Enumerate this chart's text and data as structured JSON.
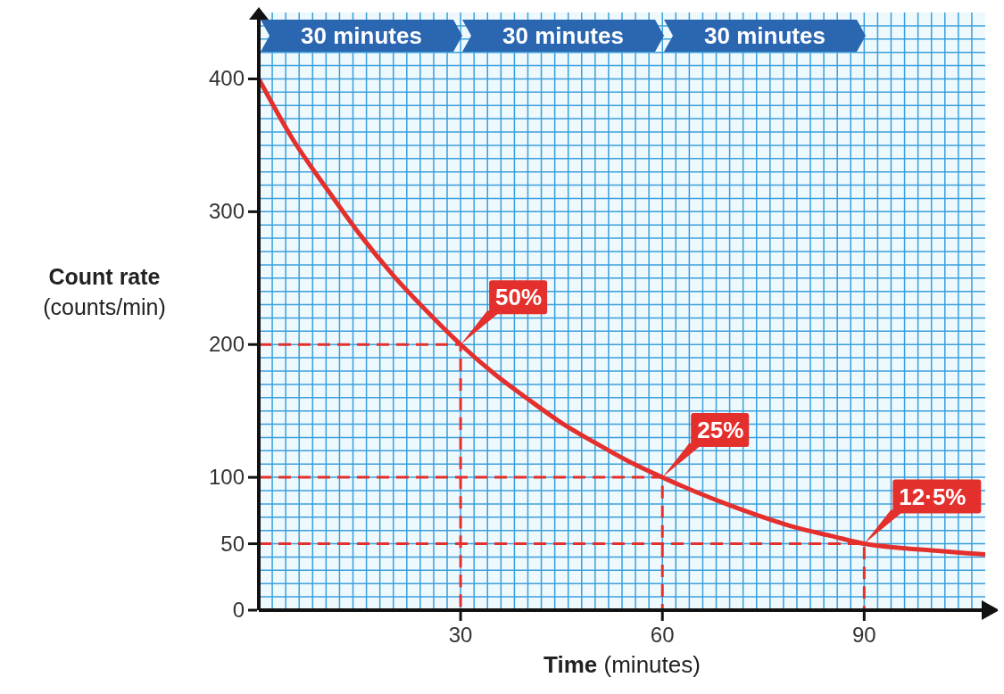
{
  "chart_data": {
    "type": "line",
    "xlabel": "Time (minutes)",
    "ylabel": "Count rate (counts/min)",
    "xlim": [
      0,
      108
    ],
    "ylim": [
      0,
      450
    ],
    "xticks": [
      {
        "value": 0,
        "label": null
      },
      {
        "value": 2,
        "label": null
      },
      {
        "value": 4,
        "label": null
      },
      {
        "value": 6,
        "label": null
      },
      {
        "value": 8,
        "label": null
      },
      {
        "value": 10,
        "label": null
      },
      {
        "value": 12,
        "label": null
      },
      {
        "value": 14,
        "label": null
      },
      {
        "value": 16,
        "label": null
      },
      {
        "value": 18,
        "label": null
      },
      {
        "value": 20,
        "label": null
      },
      {
        "value": 22,
        "label": null
      },
      {
        "value": 24,
        "label": null
      },
      {
        "value": 26,
        "label": null
      },
      {
        "value": 28,
        "label": null
      },
      30,
      {
        "value": 32,
        "label": null
      },
      {
        "value": 34,
        "label": null
      },
      {
        "value": 36,
        "label": null
      },
      {
        "value": 38,
        "label": null
      },
      {
        "value": 40,
        "label": null
      },
      {
        "value": 42,
        "label": null
      },
      {
        "value": 44,
        "label": null
      },
      {
        "value": 46,
        "label": null
      },
      {
        "value": 48,
        "label": null
      },
      {
        "value": 50,
        "label": null
      },
      {
        "value": 52,
        "label": null
      },
      {
        "value": 54,
        "label": null
      },
      {
        "value": 56,
        "label": null
      },
      {
        "value": 58,
        "label": null
      },
      60,
      {
        "value": 62,
        "label": null
      },
      {
        "value": 64,
        "label": null
      },
      {
        "value": 66,
        "label": null
      },
      {
        "value": 68,
        "label": null
      },
      {
        "value": 70,
        "label": null
      },
      {
        "value": 72,
        "label": null
      },
      {
        "value": 74,
        "label": null
      },
      {
        "value": 76,
        "label": null
      },
      {
        "value": 78,
        "label": null
      },
      {
        "value": 80,
        "label": null
      },
      {
        "value": 82,
        "label": null
      },
      {
        "value": 84,
        "label": null
      },
      {
        "value": 86,
        "label": null
      },
      {
        "value": 88,
        "label": null
      },
      90,
      {
        "value": 92,
        "label": null
      },
      {
        "value": 94,
        "label": null
      },
      {
        "value": 96,
        "label": null
      },
      {
        "value": 98,
        "label": null
      },
      {
        "value": 100,
        "label": null
      },
      {
        "value": 102,
        "label": null
      },
      {
        "value": 104,
        "label": null
      },
      {
        "value": 106,
        "label": null
      }
    ],
    "yticks": [
      0,
      {
        "value": 10,
        "label": null
      },
      {
        "value": 20,
        "label": null
      },
      {
        "value": 30,
        "label": null
      },
      {
        "value": 40,
        "label": null
      },
      50,
      {
        "value": 60,
        "label": null
      },
      {
        "value": 70,
        "label": null
      },
      {
        "value": 80,
        "label": null
      },
      {
        "value": 90,
        "label": null
      },
      100,
      {
        "value": 110,
        "label": null
      },
      {
        "value": 120,
        "label": null
      },
      {
        "value": 130,
        "label": null
      },
      {
        "value": 140,
        "label": null
      },
      {
        "value": 150,
        "label": null
      },
      {
        "value": 160,
        "label": null
      },
      {
        "value": 170,
        "label": null
      },
      {
        "value": 180,
        "label": null
      },
      {
        "value": 190,
        "label": null
      },
      200,
      {
        "value": 210,
        "label": null
      },
      {
        "value": 220,
        "label": null
      },
      {
        "value": 230,
        "label": null
      },
      {
        "value": 240,
        "label": null
      },
      {
        "value": 250,
        "label": null
      },
      {
        "value": 260,
        "label": null
      },
      {
        "value": 270,
        "label": null
      },
      {
        "value": 280,
        "label": null
      },
      {
        "value": 290,
        "label": null
      },
      300,
      {
        "value": 310,
        "label": null
      },
      {
        "value": 320,
        "label": null
      },
      {
        "value": 330,
        "label": null
      },
      {
        "value": 340,
        "label": null
      },
      {
        "value": 350,
        "label": null
      },
      {
        "value": 360,
        "label": null
      },
      {
        "value": 370,
        "label": null
      },
      {
        "value": 380,
        "label": null
      },
      {
        "value": 390,
        "label": null
      },
      400,
      {
        "value": 410,
        "label": null
      },
      {
        "value": 420,
        "label": null
      },
      {
        "value": 430,
        "label": null
      },
      {
        "value": 440,
        "label": null
      }
    ],
    "grid": true,
    "marker": "none",
    "series": [
      {
        "color": "#e3302d",
        "line_style": "solid",
        "x": [
          0,
          5,
          10,
          15,
          20,
          25,
          30,
          35,
          40,
          45,
          50,
          55,
          60,
          65,
          70,
          75,
          80,
          85,
          90,
          95,
          100,
          105,
          108
        ],
        "values": [
          400,
          355,
          318,
          283,
          252,
          225,
          200,
          178,
          159,
          141,
          126,
          112,
          100,
          89,
          79,
          70,
          62,
          56,
          50,
          47,
          45,
          43,
          42
        ]
      },
      {
        "color": "#e3302d",
        "line_style": "dashed",
        "x": [
          0,
          30,
          30
        ],
        "values": [
          200,
          200,
          0
        ]
      },
      {
        "color": "#e3302d",
        "line_style": "dashed",
        "x": [
          0,
          60,
          60
        ],
        "values": [
          100,
          100,
          0
        ]
      },
      {
        "color": "#e3302d",
        "line_style": "dashed",
        "x": [
          0,
          90,
          90
        ],
        "values": [
          50,
          50,
          0
        ]
      }
    ],
    "annotations": [
      "30 minutes",
      "30 minutes",
      "30 minutes",
      {
        "text": "50%",
        "x": 30,
        "y": 200
      },
      {
        "text": "25%",
        "x": 60,
        "y": 100
      },
      {
        "text": "12·5%",
        "x": 90,
        "y": 50
      }
    ]
  }
}
